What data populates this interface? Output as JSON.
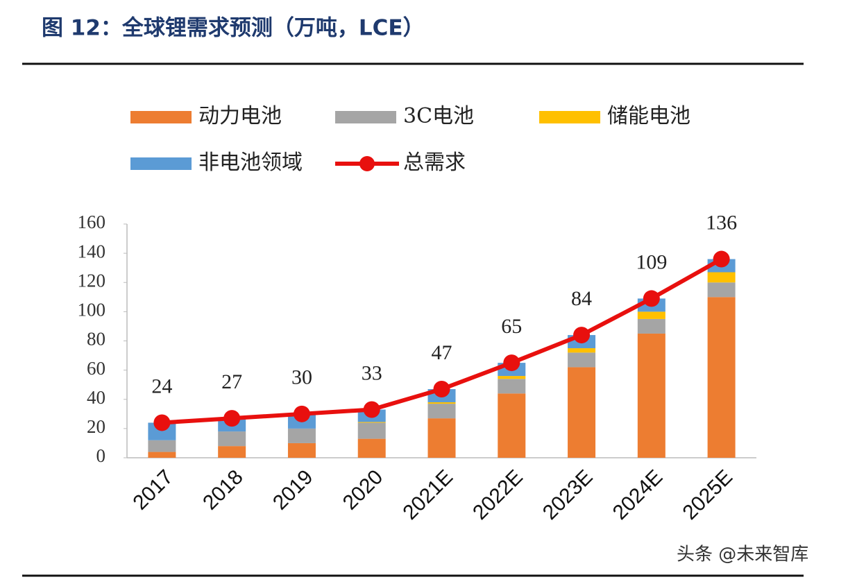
{
  "chart_data": {
    "type": "bar",
    "stacked": true,
    "title": "图 12：全球锂需求预测（万吨，LCE）",
    "categories": [
      "2017",
      "2018",
      "2019",
      "2020",
      "2021E",
      "2022E",
      "2023E",
      "2024E",
      "2025E"
    ],
    "series": [
      {
        "name": "动力电池",
        "color": "#ed7d31",
        "values": [
          4,
          8,
          10,
          13,
          27,
          44,
          62,
          85,
          110
        ]
      },
      {
        "name": "3C电池",
        "color": "#a5a5a5",
        "values": [
          8,
          10,
          10,
          11,
          10,
          10,
          10,
          10,
          10
        ]
      },
      {
        "name": "储能电池",
        "color": "#ffc000",
        "values": [
          0,
          0,
          0,
          0.5,
          1,
          2,
          3,
          5,
          7
        ]
      },
      {
        "name": "非电池领域",
        "color": "#5b9bd5",
        "values": [
          12,
          9,
          10,
          8.5,
          9,
          9,
          9,
          9,
          9
        ]
      },
      {
        "name": "总需求",
        "color": "#e8100e",
        "type": "line",
        "values": [
          24,
          27,
          30,
          33,
          47,
          65,
          84,
          109,
          136
        ]
      }
    ],
    "ylim": [
      0,
      160
    ],
    "yticks": [
      0,
      20,
      40,
      60,
      80,
      100,
      120,
      140,
      160
    ],
    "watermark": "头条 @未来智库"
  }
}
